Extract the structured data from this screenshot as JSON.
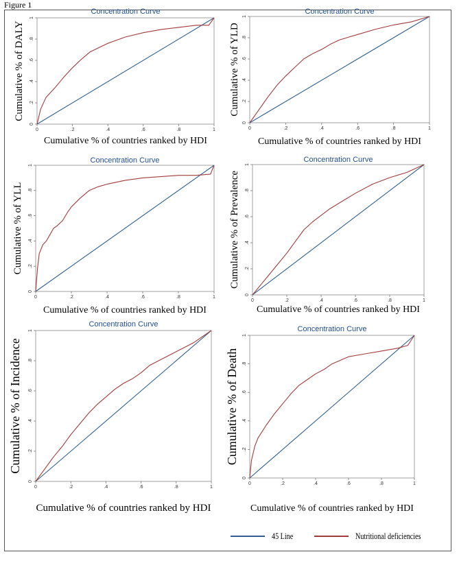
{
  "figure_label": "Figure 1",
  "legend": [
    {
      "label": "45 Line",
      "color": "#2e5f93"
    },
    {
      "label": "Nutritional deficiencies",
      "color": "#a33a3a"
    }
  ],
  "chart_data": [
    {
      "type": "line",
      "title": "Concentration Curve",
      "xlabel": "Cumulative % of countries ranked by HDI",
      "ylabel": "Cumulative % of DALY",
      "xlim": [
        0,
        1
      ],
      "ylim": [
        0,
        1
      ],
      "xticks": [
        "0",
        ".2",
        ".4",
        ".6",
        ".8",
        "1"
      ],
      "yticks": [
        "0",
        ".2",
        ".4",
        ".6",
        ".8",
        "1"
      ],
      "series": [
        {
          "name": "45 Line",
          "x": [
            0,
            1
          ],
          "y": [
            0,
            1
          ]
        },
        {
          "name": "Nutritional deficiencies",
          "x": [
            0,
            0.02,
            0.05,
            0.1,
            0.15,
            0.2,
            0.25,
            0.3,
            0.35,
            0.4,
            0.45,
            0.5,
            0.6,
            0.7,
            0.8,
            0.9,
            0.97,
            1
          ],
          "y": [
            0,
            0.14,
            0.25,
            0.34,
            0.44,
            0.53,
            0.61,
            0.68,
            0.72,
            0.76,
            0.79,
            0.82,
            0.86,
            0.89,
            0.91,
            0.93,
            0.93,
            1
          ]
        }
      ]
    },
    {
      "type": "line",
      "title": "Concentration Curve",
      "xlabel": "Cumulative % of countries ranked by HDI",
      "ylabel": "Cumulative % of YLD",
      "xlim": [
        0,
        1
      ],
      "ylim": [
        0,
        1
      ],
      "xticks": [
        "0",
        ".2",
        ".4",
        ".6",
        ".8",
        "1"
      ],
      "yticks": [
        "0",
        ".2",
        ".4",
        ".6",
        ".8",
        "1"
      ],
      "series": [
        {
          "name": "45 Line",
          "x": [
            0,
            1
          ],
          "y": [
            0,
            1
          ]
        },
        {
          "name": "Nutritional deficiencies",
          "x": [
            0,
            0.05,
            0.1,
            0.15,
            0.2,
            0.25,
            0.3,
            0.35,
            0.4,
            0.45,
            0.5,
            0.6,
            0.7,
            0.8,
            0.9,
            1
          ],
          "y": [
            0,
            0.12,
            0.24,
            0.35,
            0.44,
            0.52,
            0.6,
            0.65,
            0.69,
            0.74,
            0.78,
            0.83,
            0.88,
            0.92,
            0.95,
            1
          ]
        }
      ]
    },
    {
      "type": "line",
      "title": "Concentration Curve",
      "xlabel": "Cumulative % of countries ranked by HDI",
      "ylabel": "Cumulative % of YLL",
      "xlim": [
        0,
        1
      ],
      "ylim": [
        0,
        1
      ],
      "xticks": [
        "0",
        ".2",
        ".4",
        ".6",
        ".8",
        "1"
      ],
      "yticks": [
        "0",
        ".2",
        ".4",
        ".6",
        ".8",
        "1"
      ],
      "series": [
        {
          "name": "45 Line",
          "x": [
            0,
            1
          ],
          "y": [
            0,
            1
          ]
        },
        {
          "name": "Nutritional deficiencies",
          "x": [
            0,
            0.01,
            0.02,
            0.04,
            0.06,
            0.08,
            0.1,
            0.12,
            0.15,
            0.18,
            0.2,
            0.25,
            0.3,
            0.35,
            0.4,
            0.5,
            0.6,
            0.7,
            0.8,
            0.9,
            0.98,
            1
          ],
          "y": [
            0,
            0.18,
            0.3,
            0.37,
            0.4,
            0.45,
            0.5,
            0.52,
            0.56,
            0.63,
            0.67,
            0.74,
            0.8,
            0.83,
            0.85,
            0.88,
            0.9,
            0.91,
            0.92,
            0.92,
            0.93,
            1
          ]
        }
      ]
    },
    {
      "type": "line",
      "title": "Concentration Curve",
      "xlabel": "Cumulative % of countries ranked by HDI",
      "ylabel": "Cumulative % of Prevalence",
      "xlim": [
        0,
        1
      ],
      "ylim": [
        0,
        1
      ],
      "xticks": [
        "0",
        ".2",
        ".4",
        ".6",
        ".8",
        "1"
      ],
      "yticks": [
        "0",
        ".2",
        ".4",
        ".6",
        ".8",
        "1"
      ],
      "series": [
        {
          "name": "45 Line",
          "x": [
            0,
            1
          ],
          "y": [
            0,
            1
          ]
        },
        {
          "name": "Nutritional deficiencies",
          "x": [
            0,
            0.05,
            0.1,
            0.15,
            0.2,
            0.25,
            0.3,
            0.35,
            0.4,
            0.45,
            0.5,
            0.55,
            0.6,
            0.7,
            0.8,
            0.9,
            1
          ],
          "y": [
            0,
            0.08,
            0.16,
            0.24,
            0.32,
            0.41,
            0.5,
            0.56,
            0.61,
            0.66,
            0.7,
            0.74,
            0.78,
            0.85,
            0.9,
            0.94,
            1
          ]
        }
      ]
    },
    {
      "type": "line",
      "title": "Concentration Curve",
      "xlabel": "Cumulative % of countries ranked by HDI",
      "ylabel": "Cumulative % of Incidence",
      "xlim": [
        0,
        1
      ],
      "ylim": [
        0,
        1
      ],
      "xticks": [
        "0",
        ".2",
        ".4",
        ".6",
        ".8",
        "1"
      ],
      "yticks": [
        "0",
        ".2",
        ".4",
        ".6",
        ".8",
        "1"
      ],
      "series": [
        {
          "name": "45 Line",
          "x": [
            0,
            1
          ],
          "y": [
            0,
            1
          ]
        },
        {
          "name": "Nutritional deficiencies",
          "x": [
            0,
            0.05,
            0.1,
            0.15,
            0.2,
            0.25,
            0.3,
            0.35,
            0.4,
            0.45,
            0.5,
            0.55,
            0.6,
            0.65,
            0.7,
            0.8,
            0.9,
            1
          ],
          "y": [
            0,
            0.08,
            0.16,
            0.23,
            0.31,
            0.38,
            0.45,
            0.51,
            0.56,
            0.61,
            0.65,
            0.68,
            0.72,
            0.77,
            0.8,
            0.86,
            0.92,
            1
          ]
        }
      ]
    },
    {
      "type": "line",
      "title": "Concentration Curve",
      "xlabel": "Cumulative % of countries ranked by HDI",
      "ylabel": "Cumulative % of Death",
      "xlim": [
        0,
        1
      ],
      "ylim": [
        0,
        1
      ],
      "xticks": [
        "0",
        ".2",
        ".4",
        ".6",
        ".8",
        "1"
      ],
      "yticks": [
        "0",
        ".2",
        ".4",
        ".6",
        ".8",
        "1"
      ],
      "series": [
        {
          "name": "45 Line",
          "x": [
            0,
            1
          ],
          "y": [
            0,
            1
          ]
        },
        {
          "name": "Nutritional deficiencies",
          "x": [
            0,
            0.01,
            0.03,
            0.05,
            0.1,
            0.15,
            0.2,
            0.25,
            0.3,
            0.35,
            0.4,
            0.45,
            0.5,
            0.6,
            0.7,
            0.8,
            0.9,
            0.96,
            1
          ],
          "y": [
            0,
            0.12,
            0.22,
            0.28,
            0.37,
            0.45,
            0.52,
            0.59,
            0.65,
            0.69,
            0.73,
            0.76,
            0.8,
            0.85,
            0.87,
            0.89,
            0.91,
            0.93,
            1
          ]
        }
      ]
    }
  ]
}
